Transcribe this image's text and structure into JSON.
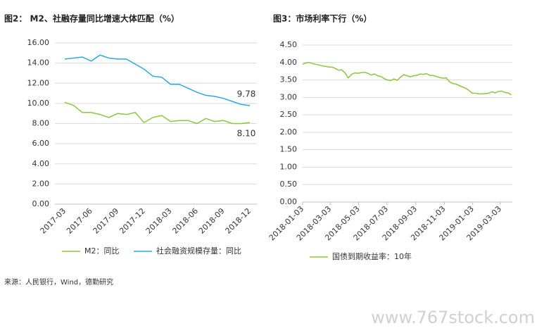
{
  "chart_data": [
    {
      "type": "line",
      "title": "图2： M2、社融存量同比增速大体匹配（%）",
      "categories": [
        "2017-03",
        null,
        null,
        "2017-06",
        null,
        null,
        "2017-09",
        null,
        null,
        "2017-12",
        null,
        null,
        "2018-03",
        null,
        null,
        "2018-06",
        null,
        null,
        "2018-09",
        null,
        null,
        "2018-12"
      ],
      "series": [
        {
          "name": "M2：同比",
          "color": "#8dc63f",
          "values": [
            10.1,
            9.8,
            9.1,
            9.1,
            8.9,
            8.6,
            9.0,
            8.9,
            9.1,
            8.1,
            8.6,
            8.8,
            8.2,
            8.3,
            8.3,
            8.0,
            8.5,
            8.2,
            8.3,
            8.0,
            8.0,
            8.1
          ],
          "value_labels": [
            null,
            null,
            null,
            null,
            null,
            null,
            null,
            null,
            null,
            null,
            null,
            null,
            null,
            null,
            null,
            null,
            null,
            null,
            null,
            null,
            null,
            "8.10"
          ]
        },
        {
          "name": "社会融资规模存量：同比",
          "color": "#2aa9e0",
          "values": [
            14.4,
            14.5,
            14.6,
            14.2,
            14.8,
            14.5,
            14.4,
            14.4,
            13.9,
            13.4,
            12.7,
            12.6,
            11.9,
            11.9,
            11.5,
            11.1,
            10.8,
            10.7,
            10.5,
            10.2,
            9.9,
            9.78
          ],
          "value_labels": [
            null,
            null,
            null,
            null,
            null,
            null,
            null,
            null,
            null,
            null,
            null,
            null,
            null,
            null,
            null,
            null,
            null,
            null,
            null,
            null,
            null,
            "9.78"
          ]
        }
      ],
      "ylim": [
        0,
        16
      ],
      "yticks": [
        {
          "value": 0,
          "label": "0.00"
        },
        {
          "value": 2,
          "label": "2.00"
        },
        {
          "value": 4,
          "label": "4.00"
        },
        {
          "value": 6,
          "label": "6.00"
        },
        {
          "value": 8,
          "label": "8.00"
        },
        {
          "value": 10,
          "label": "10.00"
        },
        {
          "value": 12,
          "label": "12.00"
        },
        {
          "value": 14,
          "label": "14.00"
        },
        {
          "value": 16,
          "label": "16.00"
        }
      ],
      "grid": true,
      "legend": "bottom"
    },
    {
      "type": "line",
      "title": "图3：市场利率下行（%）",
      "x": [
        "2018-01-03",
        "2018-01-10",
        "2018-01-17",
        "2018-01-24",
        "2018-01-31",
        "2018-02-07",
        "2018-02-14",
        "2018-02-21",
        "2018-02-28",
        "2018-03-07",
        "2018-03-14",
        "2018-03-21",
        "2018-03-28",
        "2018-04-04",
        "2018-04-11",
        "2018-04-18",
        "2018-04-25",
        "2018-05-02",
        "2018-05-09",
        "2018-05-16",
        "2018-05-23",
        "2018-05-30",
        "2018-06-06",
        "2018-06-13",
        "2018-06-20",
        "2018-06-27",
        "2018-07-04",
        "2018-07-11",
        "2018-07-18",
        "2018-07-25",
        "2018-08-01",
        "2018-08-08",
        "2018-08-15",
        "2018-08-22",
        "2018-08-29",
        "2018-09-05",
        "2018-09-12",
        "2018-09-19",
        "2018-09-26",
        "2018-10-03",
        "2018-10-10",
        "2018-10-17",
        "2018-10-24",
        "2018-10-31",
        "2018-11-07",
        "2018-11-14",
        "2018-11-21",
        "2018-11-28",
        "2018-12-05",
        "2018-12-12",
        "2018-12-19",
        "2018-12-26",
        "2019-01-02",
        "2019-01-09",
        "2019-01-16",
        "2019-01-23",
        "2019-01-30",
        "2019-02-06",
        "2019-02-13",
        "2019-02-20",
        "2019-02-27",
        "2019-03-06",
        "2019-03-13",
        "2019-03-20",
        "2019-03-27"
      ],
      "series": [
        {
          "name": "国债到期收益率：10年",
          "color": "#8dc63f",
          "values": [
            3.95,
            3.99,
            4.0,
            3.97,
            3.95,
            3.93,
            3.9,
            3.89,
            3.87,
            3.87,
            3.83,
            3.78,
            3.79,
            3.7,
            3.56,
            3.66,
            3.7,
            3.69,
            3.71,
            3.72,
            3.69,
            3.64,
            3.67,
            3.62,
            3.6,
            3.54,
            3.5,
            3.48,
            3.53,
            3.49,
            3.58,
            3.65,
            3.62,
            3.59,
            3.62,
            3.63,
            3.67,
            3.66,
            3.68,
            3.63,
            3.63,
            3.6,
            3.57,
            3.55,
            3.56,
            3.45,
            3.4,
            3.38,
            3.34,
            3.3,
            3.26,
            3.2,
            3.12,
            3.12,
            3.1,
            3.1,
            3.11,
            3.12,
            3.16,
            3.13,
            3.17,
            3.18,
            3.14,
            3.13,
            3.07
          ]
        }
      ],
      "xlim": [
        "2018-01-03",
        "2019-03-29"
      ],
      "xticks": [
        "2018-01-03",
        "2018-03-03",
        "2018-05-03",
        "2018-07-03",
        "2018-09-03",
        "2018-11-03",
        "2019-01-03",
        "2019-03-03"
      ],
      "ylim": [
        0,
        4.5
      ],
      "yticks": [
        {
          "value": 0,
          "label": "0.00"
        },
        {
          "value": 0.5,
          "label": "0.50"
        },
        {
          "value": 1,
          "label": "1.00"
        },
        {
          "value": 1.5,
          "label": "1.50"
        },
        {
          "value": 2,
          "label": "2.00"
        },
        {
          "value": 2.5,
          "label": "2.50"
        },
        {
          "value": 3,
          "label": "3.00"
        },
        {
          "value": 3.5,
          "label": "3.50"
        },
        {
          "value": 4,
          "label": "4.00"
        },
        {
          "value": 4.5,
          "label": "4.50"
        }
      ],
      "grid": true,
      "legend": "bottom"
    }
  ],
  "source": "来源：人民银行，Wind，德勤研究",
  "watermark": "www.767stock.com"
}
